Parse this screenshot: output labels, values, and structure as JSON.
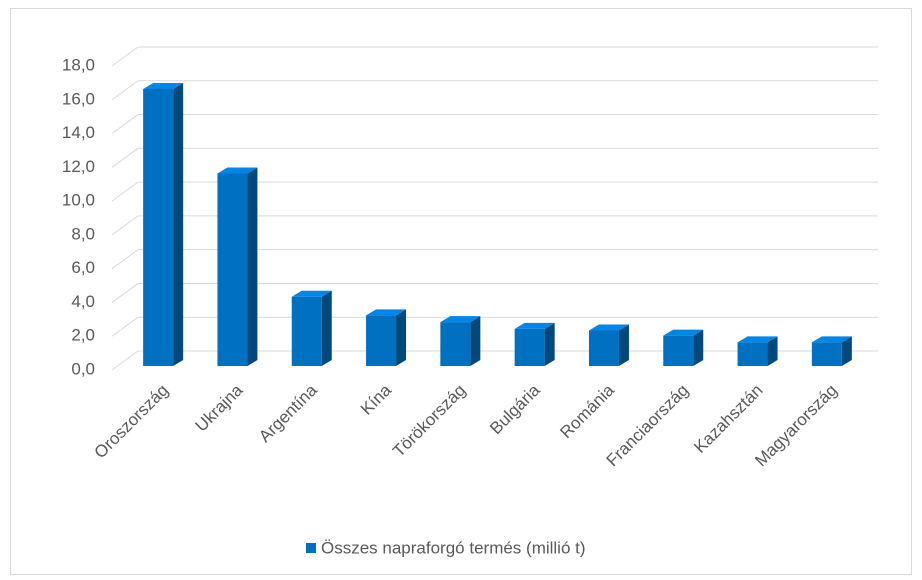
{
  "chart_data": {
    "type": "bar3d",
    "categories": [
      "Oroszország",
      "Ukrajna",
      "Argentína",
      "Kína",
      "Törökország",
      "Bulgária",
      "Románia",
      "Franciaország",
      "Kazahsztán",
      "Magyarország"
    ],
    "series": [
      {
        "name": "Összes napraforgó termés (millió t)",
        "color": "#0070c0",
        "values": [
          16.4,
          11.4,
          4.1,
          3.0,
          2.6,
          2.2,
          2.1,
          1.8,
          1.4,
          1.4
        ]
      }
    ],
    "ylim": [
      0,
      18
    ],
    "yticks": [
      {
        "value": 0,
        "label": "0,0"
      },
      {
        "value": 2,
        "label": "2,0"
      },
      {
        "value": 4,
        "label": "4,0"
      },
      {
        "value": 6,
        "label": "6,0"
      },
      {
        "value": 8,
        "label": "8,0"
      },
      {
        "value": 10,
        "label": "10,0"
      },
      {
        "value": 12,
        "label": "12,0"
      },
      {
        "value": 14,
        "label": "14,0"
      },
      {
        "value": 16,
        "label": "16,0"
      },
      {
        "value": 18,
        "label": "18,0"
      }
    ],
    "grid": true,
    "legend": "bottom"
  }
}
